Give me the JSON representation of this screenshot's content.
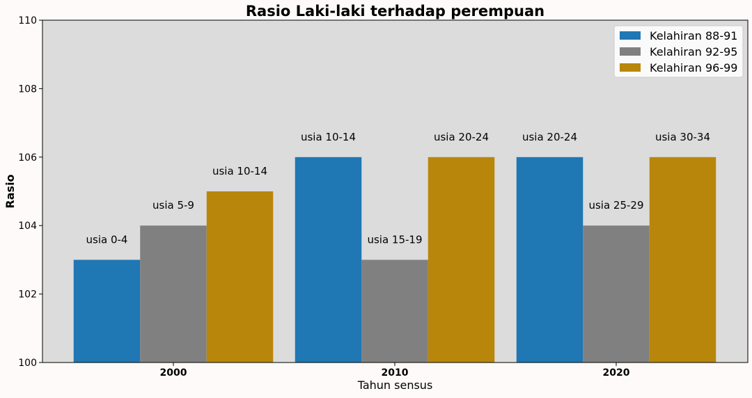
{
  "chart_data": {
    "type": "bar",
    "title": "Rasio Laki-laki terhadap perempuan",
    "xlabel": "Tahun sensus",
    "ylabel": "Rasio",
    "categories": [
      "2000",
      "2010",
      "2020"
    ],
    "ylim": [
      100,
      110
    ],
    "yticks": [
      100,
      102,
      104,
      106,
      108,
      110
    ],
    "grid": false,
    "legend_position": "top-right",
    "series": [
      {
        "name": "Kelahiran 88-91",
        "color": "#1f77b4",
        "values": [
          103,
          106,
          106
        ],
        "labels": [
          "usia 0-4",
          "usia 10-14",
          "usia 20-24"
        ]
      },
      {
        "name": "Kelahiran 92-95",
        "color": "#808080",
        "values": [
          104,
          103,
          104
        ],
        "labels": [
          "usia 5-9",
          "usia 15-19",
          "usia 25-29"
        ]
      },
      {
        "name": "Kelahiran 96-99",
        "color": "#b8860b",
        "values": [
          105,
          106,
          106
        ],
        "labels": [
          "usia 10-14",
          "usia 20-24",
          "usia 30-34"
        ]
      }
    ],
    "plot_background": "#dcdcdc",
    "page_background": "#fdfaf9"
  }
}
